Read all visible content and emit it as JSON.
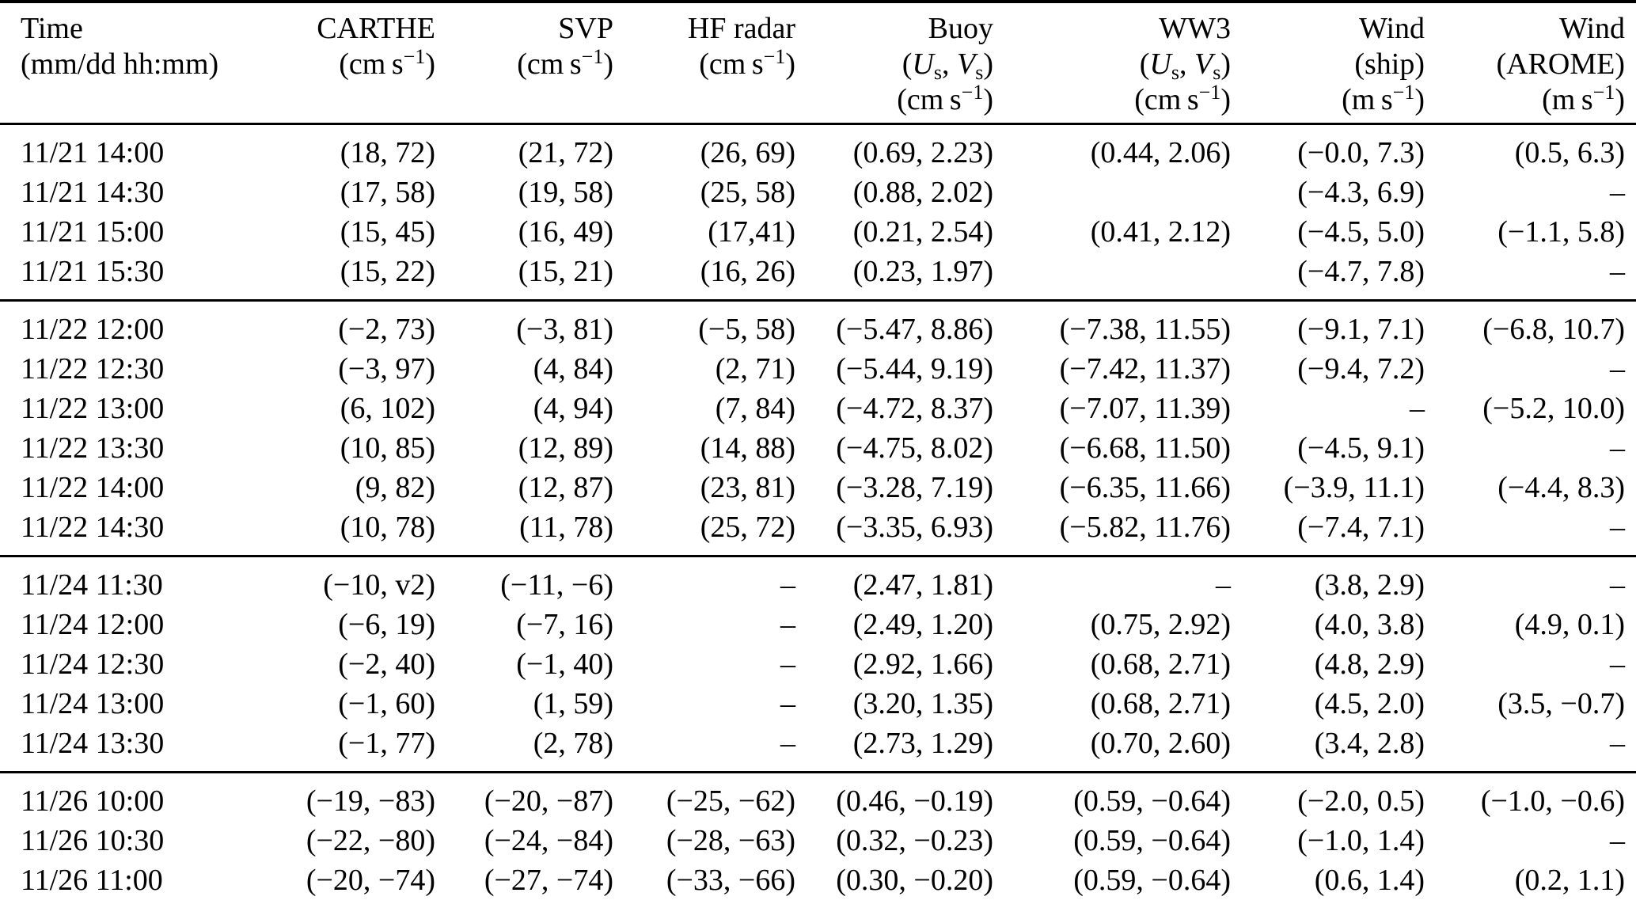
{
  "page": {
    "background": "#ffffff",
    "text_color": "#000000"
  },
  "table": {
    "columns": [
      {
        "title": "Time",
        "line2": "(mm/dd hh:mm)"
      },
      {
        "title": "CARTHE",
        "unit": {
          "pre": "(cm s",
          "sup": "−1",
          "post": ")"
        }
      },
      {
        "title": "SVP",
        "unit": {
          "pre": "(cm s",
          "sup": "−1",
          "post": ")"
        }
      },
      {
        "title": "HF radar",
        "unit": {
          "pre": "(cm s",
          "sup": "−1",
          "post": ")"
        }
      },
      {
        "title": "Buoy",
        "uv": {
          "open": "(",
          "u": "U",
          "sub1": "s",
          "sep": ", ",
          "v": "V",
          "sub2": "s",
          "close": ")"
        },
        "unit": {
          "pre": "(cm s",
          "sup": "−1",
          "post": ")"
        }
      },
      {
        "title": "WW3",
        "uv": {
          "open": "(",
          "u": "U",
          "sub1": "s",
          "sep": ", ",
          "v": "V",
          "sub2": "s",
          "close": ")"
        },
        "unit": {
          "pre": "(cm s",
          "sup": "−1",
          "post": ")"
        }
      },
      {
        "title": "Wind",
        "line2": "(ship)",
        "unit": {
          "pre": "(m s",
          "sup": "−1",
          "post": ")"
        }
      },
      {
        "title": "Wind",
        "line2": "(AROME)",
        "unit": {
          "pre": "(m s",
          "sup": "−1",
          "post": ")"
        }
      }
    ],
    "groups": [
      {
        "date": "11/21",
        "rows": [
          {
            "time": "11/21 14:00",
            "values": [
              "(18, 72)",
              "(21, 72)",
              "(26, 69)",
              "(0.69, 2.23)",
              "(0.44, 2.06)",
              "(−0.0, 7.3)",
              "(0.5, 6.3)"
            ]
          },
          {
            "time": "11/21 14:30",
            "values": [
              "(17, 58)",
              "(19, 58)",
              "(25, 58)",
              "(0.88, 2.02)",
              "",
              "(−4.3, 6.9)",
              "–"
            ]
          },
          {
            "time": "11/21 15:00",
            "values": [
              "(15, 45)",
              "(16, 49)",
              "(17,41)",
              "(0.21, 2.54)",
              "(0.41, 2.12)",
              "(−4.5, 5.0)",
              "(−1.1, 5.8)"
            ]
          },
          {
            "time": "11/21 15:30",
            "values": [
              "(15, 22)",
              "(15, 21)",
              "(16, 26)",
              "(0.23, 1.97)",
              "",
              "(−4.7, 7.8)",
              "–"
            ]
          }
        ]
      },
      {
        "date": "11/22",
        "rows": [
          {
            "time": "11/22 12:00",
            "values": [
              "(−2, 73)",
              "(−3, 81)",
              "(−5, 58)",
              "(−5.47, 8.86)",
              "(−7.38, 11.55)",
              "(−9.1, 7.1)",
              "(−6.8, 10.7)"
            ]
          },
          {
            "time": "11/22 12:30",
            "values": [
              "(−3, 97)",
              "(4, 84)",
              "(2, 71)",
              "(−5.44, 9.19)",
              "(−7.42, 11.37)",
              "(−9.4, 7.2)",
              "–"
            ]
          },
          {
            "time": "11/22 13:00",
            "values": [
              "(6, 102)",
              "(4, 94)",
              "(7, 84)",
              "(−4.72, 8.37)",
              "(−7.07, 11.39)",
              "–",
              "(−5.2, 10.0)"
            ]
          },
          {
            "time": "11/22 13:30",
            "values": [
              "(10, 85)",
              "(12, 89)",
              "(14, 88)",
              "(−4.75, 8.02)",
              "(−6.68, 11.50)",
              "(−4.5, 9.1)",
              "–"
            ]
          },
          {
            "time": "11/22 14:00",
            "values": [
              "(9, 82)",
              "(12, 87)",
              "(23, 81)",
              "(−3.28, 7.19)",
              "(−6.35, 11.66)",
              "(−3.9, 11.1)",
              "(−4.4, 8.3)"
            ]
          },
          {
            "time": "11/22 14:30",
            "values": [
              "(10, 78)",
              "(11, 78)",
              "(25, 72)",
              "(−3.35, 6.93)",
              "(−5.82, 11.76)",
              "(−7.4, 7.1)",
              "–"
            ]
          }
        ]
      },
      {
        "date": "11/24",
        "rows": [
          {
            "time": "11/24 11:30",
            "values": [
              "(−10, v2)",
              "(−11, −6)",
              "–",
              "(2.47, 1.81)",
              "–",
              "(3.8, 2.9)",
              "–"
            ]
          },
          {
            "time": "11/24 12:00",
            "values": [
              "(−6, 19)",
              "(−7, 16)",
              "–",
              "(2.49, 1.20)",
              "(0.75, 2.92)",
              "(4.0, 3.8)",
              "(4.9, 0.1)"
            ]
          },
          {
            "time": "11/24 12:30",
            "values": [
              "(−2, 40)",
              "(−1, 40)",
              "–",
              "(2.92, 1.66)",
              "(0.68, 2.71)",
              "(4.8, 2.9)",
              "–"
            ]
          },
          {
            "time": "11/24 13:00",
            "values": [
              "(−1, 60)",
              "(1, 59)",
              "–",
              "(3.20, 1.35)",
              "(0.68, 2.71)",
              "(4.5, 2.0)",
              "(3.5, −0.7)"
            ]
          },
          {
            "time": "11/24 13:30",
            "values": [
              "(−1, 77)",
              "(2, 78)",
              "–",
              "(2.73, 1.29)",
              "(0.70, 2.60)",
              "(3.4, 2.8)",
              "–"
            ]
          }
        ]
      },
      {
        "date": "11/26",
        "rows": [
          {
            "time": "11/26 10:00",
            "values": [
              "(−19, −83)",
              "(−20, −87)",
              "(−25, −62)",
              "(0.46, −0.19)",
              "(0.59, −0.64)",
              "(−2.0, 0.5)",
              "(−1.0, −0.6)"
            ]
          },
          {
            "time": "11/26 10:30",
            "values": [
              "(−22, −80)",
              "(−24, −84)",
              "(−28, −63)",
              "(0.32, −0.23)",
              "(0.59, −0.64)",
              "(−1.0, 1.4)",
              "–"
            ]
          },
          {
            "time": "11/26 11:00",
            "values": [
              "(−20, −74)",
              "(−27, −74)",
              "(−33, −66)",
              "(0.30, −0.20)",
              "(0.59, −0.64)",
              "(0.6, 1.4)",
              "(0.2, 1.1)"
            ]
          }
        ]
      }
    ]
  }
}
